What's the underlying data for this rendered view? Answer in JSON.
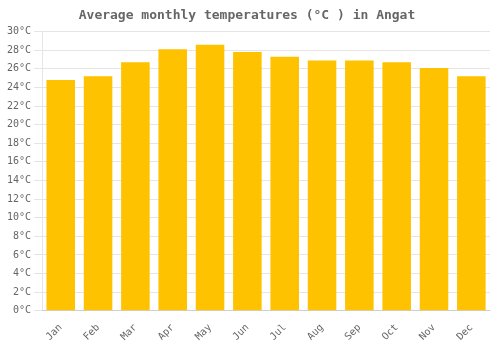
{
  "chart_data": {
    "type": "bar",
    "title": "Average monthly temperatures (°C ) in Angat",
    "categories": [
      "Jan",
      "Feb",
      "Mar",
      "Apr",
      "May",
      "Jun",
      "Jul",
      "Aug",
      "Sep",
      "Oct",
      "Nov",
      "Dec"
    ],
    "values": [
      24.8,
      25.2,
      26.7,
      28.1,
      28.6,
      27.8,
      27.3,
      26.9,
      26.9,
      26.7,
      26.1,
      25.2
    ],
    "color": "#FFC200",
    "ylim": [
      0,
      30
    ],
    "yticks": [
      {
        "value": 0,
        "label": "0°C"
      },
      {
        "value": 2,
        "label": "2°C"
      },
      {
        "value": 4,
        "label": "4°C"
      },
      {
        "value": 6,
        "label": "6°C"
      },
      {
        "value": 8,
        "label": "8°C"
      },
      {
        "value": 10,
        "label": "10°C"
      },
      {
        "value": 12,
        "label": "12°C"
      },
      {
        "value": 14,
        "label": "14°C"
      },
      {
        "value": 16,
        "label": "16°C"
      },
      {
        "value": 18,
        "label": "18°C"
      },
      {
        "value": 20,
        "label": "20°C"
      },
      {
        "value": 22,
        "label": "22°C"
      },
      {
        "value": 24,
        "label": "24°C"
      },
      {
        "value": 26,
        "label": "26°C"
      },
      {
        "value": 28,
        "label": "28°C"
      },
      {
        "value": 30,
        "label": "30°C"
      }
    ],
    "grid": true
  }
}
